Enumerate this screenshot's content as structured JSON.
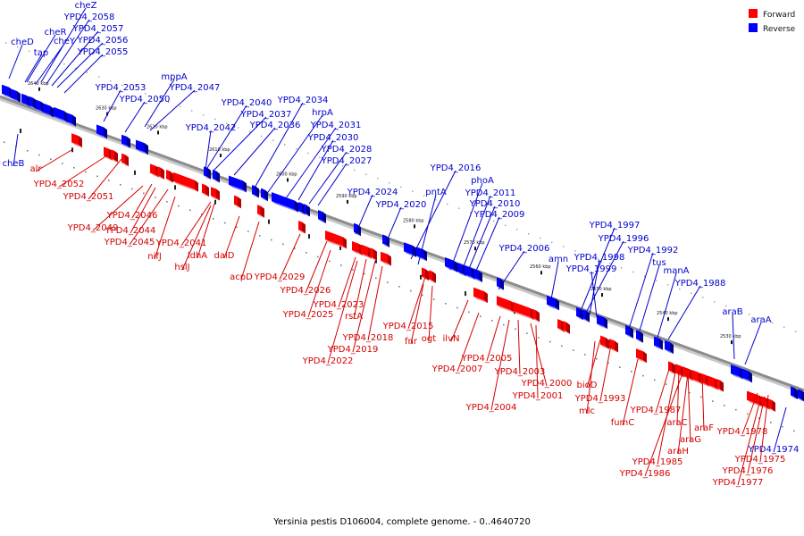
{
  "caption": "Yersinia pestis D106004, complete genome. - 0..4640720",
  "legend": [
    {
      "label": "Forward",
      "color": "#ff0000"
    },
    {
      "label": "Reverse",
      "color": "#0000ff"
    }
  ],
  "colors": {
    "forward": "#ff0000",
    "reverse": "#0000ff",
    "forward_label": "#d40000",
    "reverse_label": "#0000cc",
    "backbone": "#8c8c8c"
  },
  "ticks": [
    "2640 kbp",
    "2630 kbp",
    "2620 kbp",
    "2610 kbp",
    "2600 kbp",
    "2590 kbp",
    "2580 kbp",
    "2570 kbp",
    "2560 kbp",
    "2550 kbp",
    "2540 kbp",
    "2530 kbp"
  ],
  "reverse_labels": [
    "cheZ",
    "YPD4_2058",
    "YPD4_2057",
    "cheR",
    "cheY",
    "YPD4_2056",
    "cheD",
    "tap",
    "YPD4_2055",
    "mppA",
    "YPD4_2047",
    "YPD4_2053",
    "YPD4_2050",
    "YPD4_2040",
    "YPD4_2034",
    "YPD4_2037",
    "hrpA",
    "YPD4_2042",
    "YPD4_2036",
    "YPD4_2031",
    "YPD4_2030",
    "YPD4_2028",
    "YPD4_2027",
    "cheB",
    "YPD4_2016",
    "phoA",
    "YPD4_2011",
    "YPD4_2024",
    "pntA",
    "YPD4_2010",
    "YPD4_2020",
    "YPD4_2009",
    "YPD4_2006",
    "YPD4_1997",
    "YPD4_1996",
    "amn",
    "YPD4_1998",
    "YPD4_1992",
    "YPD4_1999",
    "tus",
    "manA",
    "YPD4_1988",
    "araB",
    "araA",
    "YPD4_1974"
  ],
  "forward_labels": [
    "alr",
    "YPD4_2052",
    "YPD4_2051",
    "YPD4_2046",
    "YPD4_2049",
    "YPD4_2044",
    "YPD4_2045",
    "YPD4_2041",
    "nifJ",
    "ldhA",
    "hslJ",
    "dalD",
    "acpD",
    "YPD4_2029",
    "YPD4_2026",
    "YPD4_2023",
    "YPD4_2025",
    "rstA",
    "YPD4_2018",
    "YPD4_2019",
    "YPD4_2022",
    "YPD4_2015",
    "fnr",
    "ogt",
    "ilvN",
    "YPD4_2007",
    "YPD4_2005",
    "YPD4_2003",
    "YPD4_2000",
    "YPD4_2001",
    "YPD4_2004",
    "bioD",
    "YPD4_1993",
    "mlc",
    "YPD4_1987",
    "fumC",
    "araC",
    "araG",
    "araH",
    "araF",
    "YPD4_1985",
    "YPD4_1986",
    "YPD4_1978",
    "YPD4_1975",
    "YPD4_1976",
    "YPD4_1977"
  ]
}
